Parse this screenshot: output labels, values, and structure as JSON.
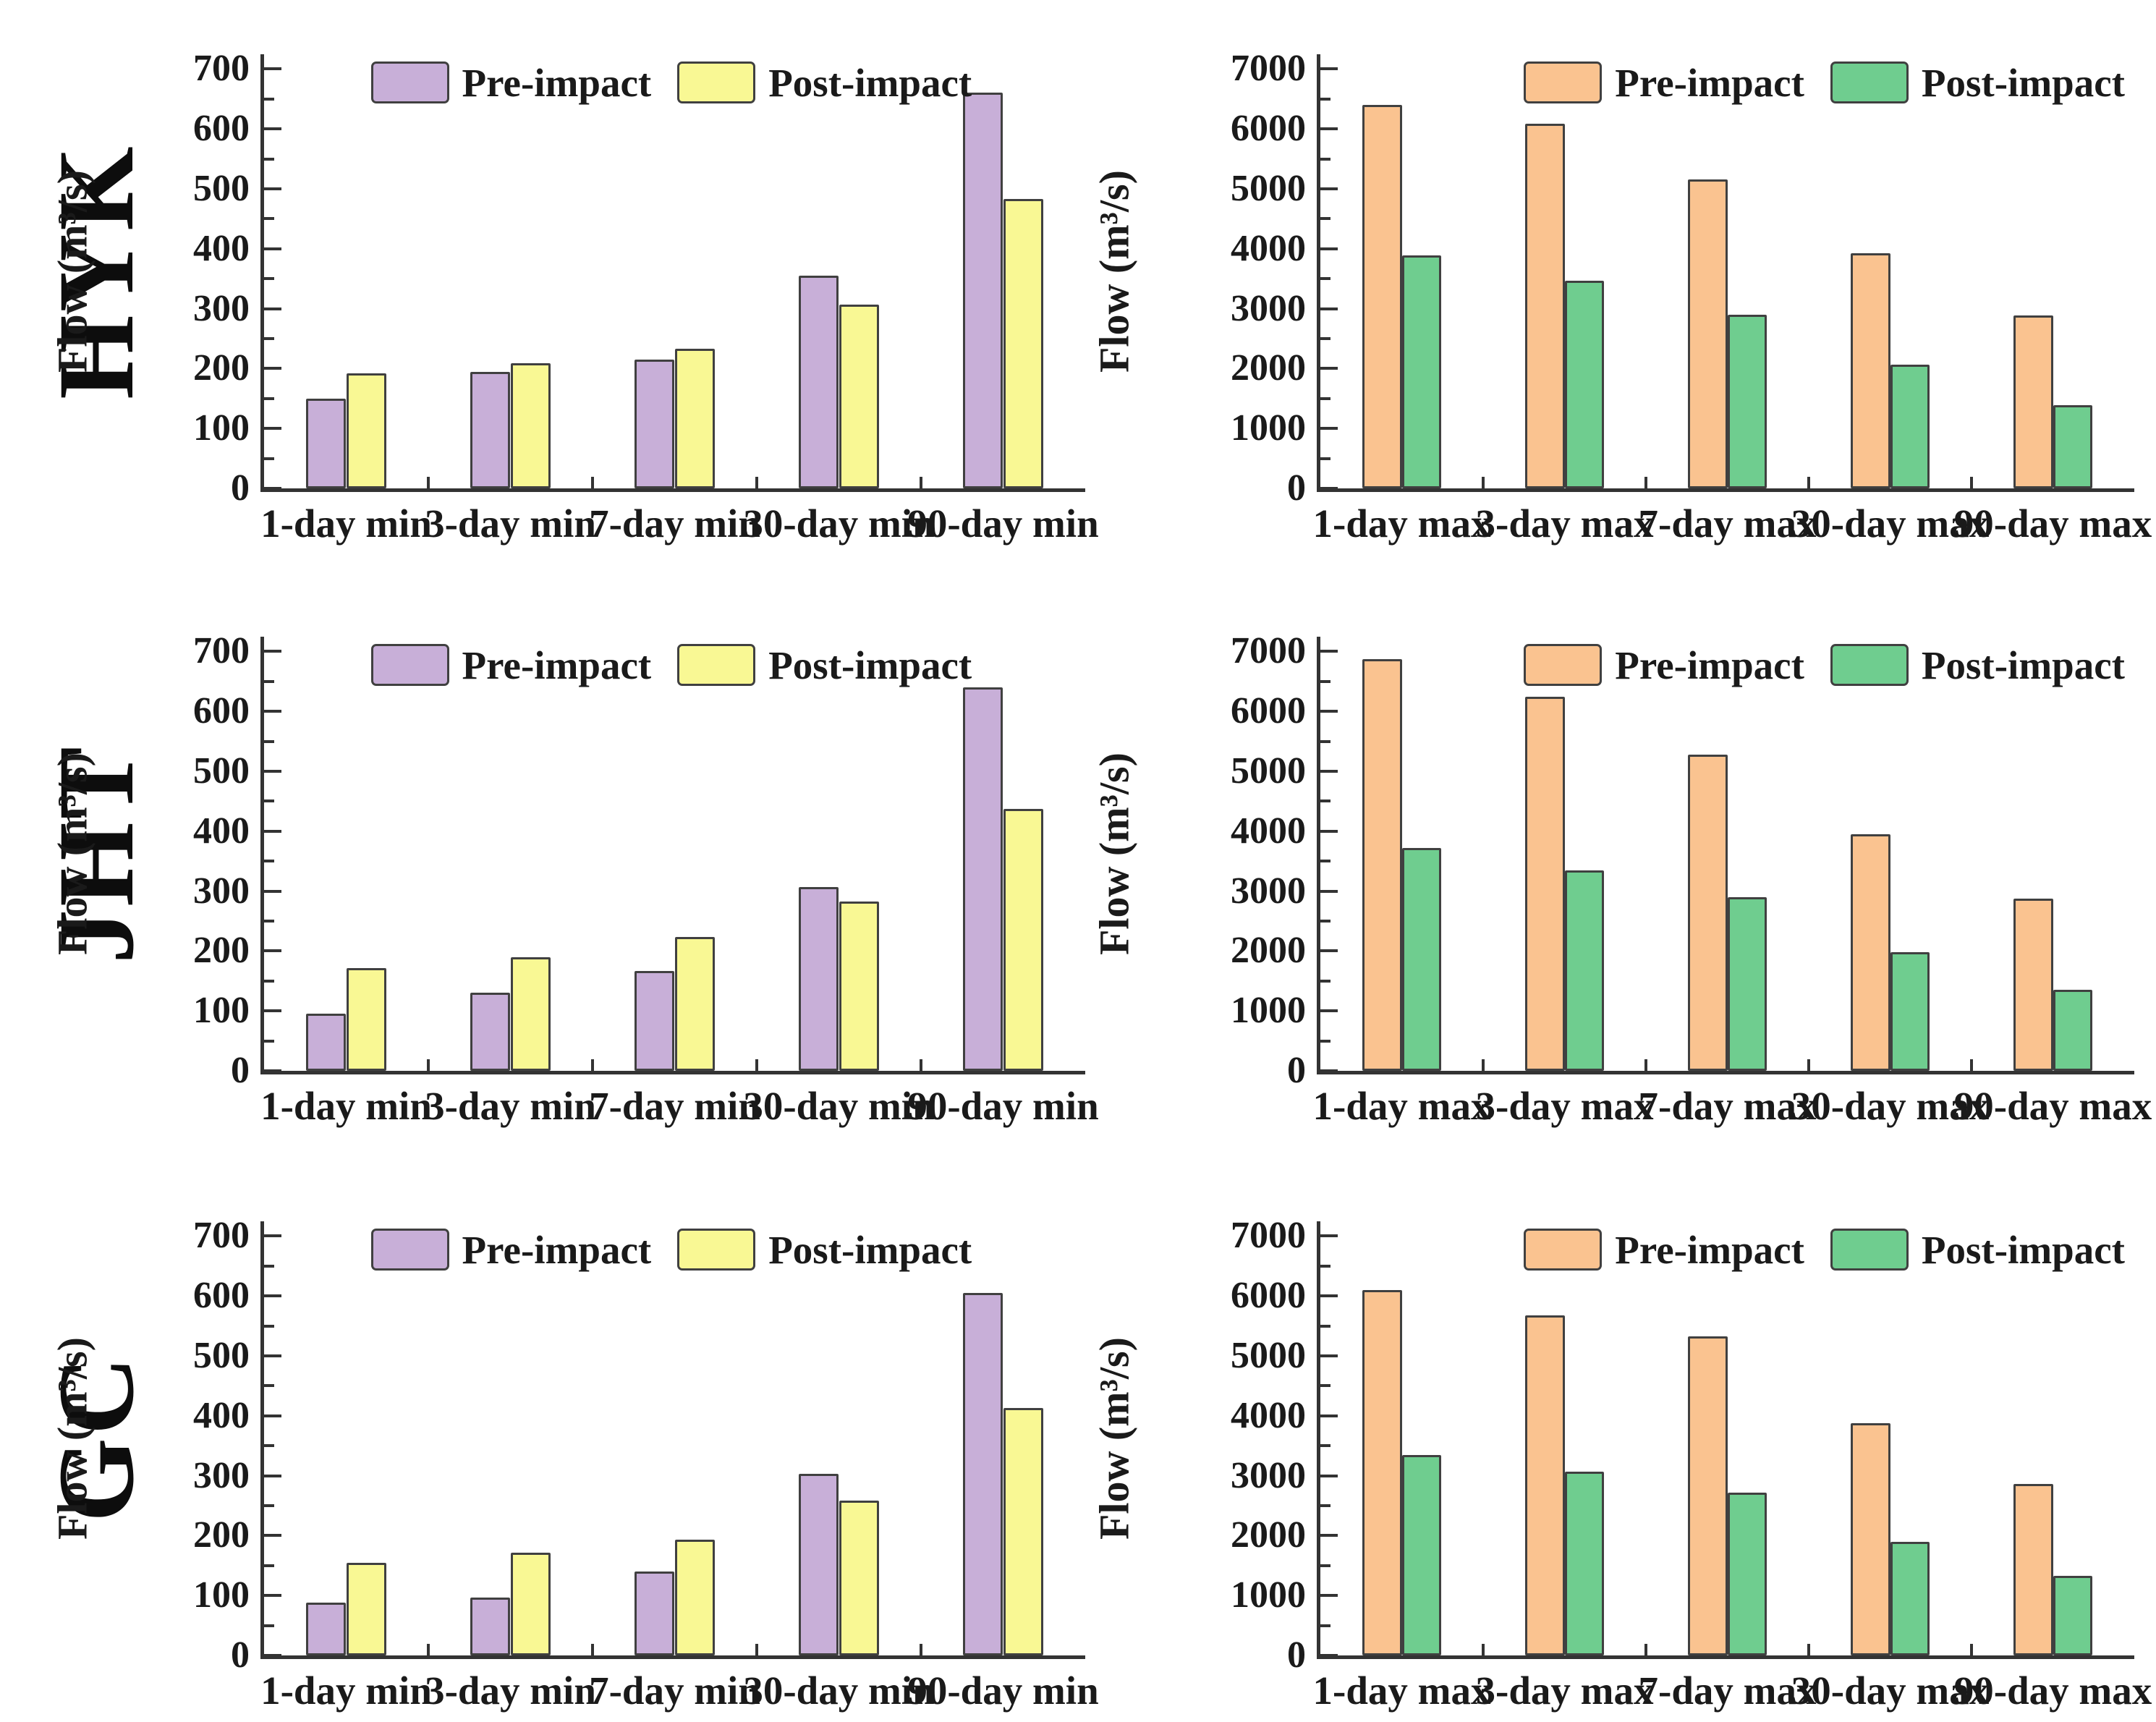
{
  "figure": {
    "background": "#ffffff",
    "text_color": "#1a1a1a",
    "axis_color": "#333333",
    "bar_border_color": "#404040"
  },
  "stations": [
    "HYK",
    "JHT",
    "GC"
  ],
  "legend": {
    "pre_label": "Pre-impact",
    "post_label": "Post-impact"
  },
  "colors": {
    "pre_min": "#C8AFD8",
    "post_min": "#F9F894",
    "pre_max": "#FAC390",
    "post_max": "#6FCD8F"
  },
  "chart_data": [
    {
      "station": "HYK",
      "panel": "min",
      "type": "bar",
      "title": "",
      "ylabel": "Flow (m³/s)",
      "xlabel": "",
      "ylim": [
        0,
        700
      ],
      "ytick_step": 100,
      "yminor_step": 50,
      "grid": false,
      "legend_position": "top-inside",
      "categories": [
        "1-day min",
        "3-day min",
        "7-day min",
        "30-day min",
        "90-day min"
      ],
      "series": [
        {
          "name": "Pre-impact",
          "color": "#C8AFD8",
          "values": [
            150,
            195,
            215,
            355,
            660
          ]
        },
        {
          "name": "Post-impact",
          "color": "#F9F894",
          "values": [
            192,
            209,
            233,
            307,
            483
          ]
        }
      ]
    },
    {
      "station": "HYK",
      "panel": "max",
      "type": "bar",
      "title": "",
      "ylabel": "Flow (m³/s)",
      "xlabel": "",
      "ylim": [
        0,
        7000
      ],
      "ytick_step": 1000,
      "yminor_step": 500,
      "grid": false,
      "legend_position": "top-inside",
      "categories": [
        "1-day max",
        "3-day max",
        "7-day max",
        "30-day max",
        "90-day max"
      ],
      "series": [
        {
          "name": "Pre-impact",
          "color": "#FAC390",
          "values": [
            6400,
            6080,
            5160,
            3930,
            2890
          ]
        },
        {
          "name": "Post-impact",
          "color": "#6FCD8F",
          "values": [
            3890,
            3470,
            2900,
            2060,
            1390
          ]
        }
      ]
    },
    {
      "station": "JHT",
      "panel": "min",
      "type": "bar",
      "title": "",
      "ylabel": "Flow (m³/s)",
      "xlabel": "",
      "ylim": [
        0,
        700
      ],
      "ytick_step": 100,
      "yminor_step": 50,
      "grid": false,
      "legend_position": "top-inside",
      "categories": [
        "1-day min",
        "3-day min",
        "7-day min",
        "30-day min",
        "90-day min"
      ],
      "series": [
        {
          "name": "Pre-impact",
          "color": "#C8AFD8",
          "values": [
            95,
            131,
            167,
            307,
            640
          ]
        },
        {
          "name": "Post-impact",
          "color": "#F9F894",
          "values": [
            172,
            190,
            224,
            282,
            437
          ]
        }
      ]
    },
    {
      "station": "JHT",
      "panel": "max",
      "type": "bar",
      "title": "",
      "ylabel": "Flow (m³/s)",
      "xlabel": "",
      "ylim": [
        0,
        7000
      ],
      "ytick_step": 1000,
      "yminor_step": 500,
      "grid": false,
      "legend_position": "top-inside",
      "categories": [
        "1-day max",
        "3-day max",
        "7-day max",
        "30-day max",
        "90-day max"
      ],
      "series": [
        {
          "name": "Pre-impact",
          "color": "#FAC390",
          "values": [
            6870,
            6240,
            5280,
            3950,
            2870
          ]
        },
        {
          "name": "Post-impact",
          "color": "#6FCD8F",
          "values": [
            3720,
            3350,
            2900,
            1980,
            1350
          ]
        }
      ]
    },
    {
      "station": "GC",
      "panel": "min",
      "type": "bar",
      "title": "",
      "ylabel": "Flow (m³/s)",
      "xlabel": "",
      "ylim": [
        0,
        700
      ],
      "ytick_step": 100,
      "yminor_step": 50,
      "grid": false,
      "legend_position": "top-inside",
      "categories": [
        "1-day min",
        "3-day min",
        "7-day min",
        "30-day min",
        "90-day min"
      ],
      "series": [
        {
          "name": "Pre-impact",
          "color": "#C8AFD8",
          "values": [
            88,
            97,
            140,
            303,
            605
          ]
        },
        {
          "name": "Post-impact",
          "color": "#F9F894",
          "values": [
            155,
            172,
            193,
            258,
            413
          ]
        }
      ]
    },
    {
      "station": "GC",
      "panel": "max",
      "type": "bar",
      "title": "",
      "ylabel": "Flow (m³/s)",
      "xlabel": "",
      "ylim": [
        0,
        7000
      ],
      "ytick_step": 1000,
      "yminor_step": 500,
      "grid": false,
      "legend_position": "top-inside",
      "categories": [
        "1-day max",
        "3-day max",
        "7-day max",
        "30-day max",
        "90-day max"
      ],
      "series": [
        {
          "name": "Pre-impact",
          "color": "#FAC390",
          "values": [
            6100,
            5680,
            5330,
            3880,
            2860
          ]
        },
        {
          "name": "Post-impact",
          "color": "#6FCD8F",
          "values": [
            3350,
            3070,
            2720,
            1900,
            1330
          ]
        }
      ]
    }
  ]
}
